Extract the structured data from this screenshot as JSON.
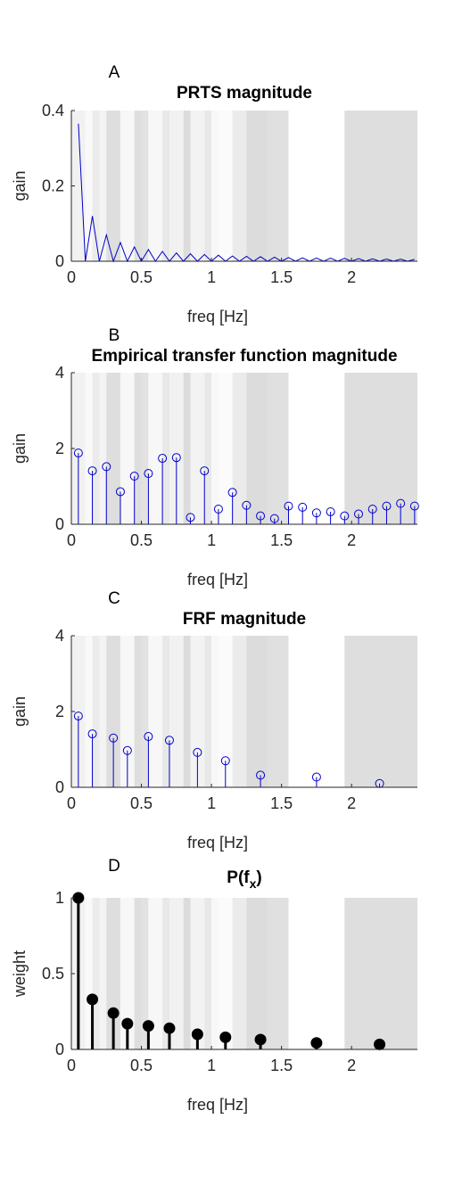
{
  "chart_data": [
    {
      "panel": "A",
      "type": "line",
      "title": "PRTS magnitude",
      "xlabel": "freq [Hz]",
      "ylabel": "gain",
      "xlim": [
        0,
        2.47
      ],
      "ylim": [
        0,
        0.4
      ],
      "xticks": [
        "0",
        "0.5",
        "1",
        "1.5",
        "2"
      ],
      "yticks": [
        "0",
        "0.2",
        "0.4"
      ],
      "series": [
        {
          "color": "#0000cc",
          "x": [
            0.05,
            0.1,
            0.15,
            0.2,
            0.25,
            0.3,
            0.35,
            0.4,
            0.45,
            0.5,
            0.55,
            0.6,
            0.65,
            0.7,
            0.75,
            0.8,
            0.85,
            0.9,
            0.95,
            1.0,
            1.05,
            1.1,
            1.15,
            1.2,
            1.25,
            1.3,
            1.35,
            1.4,
            1.45,
            1.5,
            1.55,
            1.6,
            1.65,
            1.7,
            1.75,
            1.8,
            1.85,
            1.9,
            1.95,
            2.0,
            2.05,
            2.1,
            2.15,
            2.2,
            2.25,
            2.3,
            2.35,
            2.4,
            2.45
          ],
          "y": [
            0.365,
            0.0,
            0.12,
            0.0,
            0.07,
            0.0,
            0.05,
            0.0,
            0.038,
            0.0,
            0.031,
            0.0,
            0.026,
            0.0,
            0.022,
            0.0,
            0.02,
            0.0,
            0.018,
            0.0,
            0.016,
            0.0,
            0.014,
            0.0,
            0.013,
            0.0,
            0.012,
            0.0,
            0.011,
            0.0,
            0.01,
            0.0,
            0.009,
            0.0,
            0.0085,
            0.0,
            0.008,
            0.0,
            0.0075,
            0.0,
            0.007,
            0.0,
            0.0065,
            0.0,
            0.006,
            0.0,
            0.0055,
            0.0,
            0.005
          ]
        }
      ]
    },
    {
      "panel": "B",
      "type": "stem",
      "title": "Empirical transfer function magnitude",
      "xlabel": "freq [Hz]",
      "ylabel": "gain",
      "xlim": [
        0,
        2.47
      ],
      "ylim": [
        0,
        4
      ],
      "xticks": [
        "0",
        "0.5",
        "1",
        "1.5",
        "2"
      ],
      "yticks": [
        "0",
        "2",
        "4"
      ],
      "series": [
        {
          "color": "#0000cc",
          "marker": "open-circle",
          "x": [
            0.05,
            0.15,
            0.25,
            0.35,
            0.45,
            0.55,
            0.65,
            0.75,
            0.85,
            0.95,
            1.05,
            1.15,
            1.25,
            1.35,
            1.45,
            1.55,
            1.65,
            1.75,
            1.85,
            1.95,
            2.05,
            2.15,
            2.25,
            2.35,
            2.45
          ],
          "y": [
            1.88,
            1.41,
            1.52,
            0.86,
            1.27,
            1.34,
            1.74,
            1.76,
            0.18,
            1.41,
            0.4,
            0.84,
            0.5,
            0.22,
            0.15,
            0.48,
            0.45,
            0.3,
            0.33,
            0.22,
            0.27,
            0.4,
            0.48,
            0.55,
            0.48
          ]
        }
      ]
    },
    {
      "panel": "C",
      "type": "stem",
      "title": "FRF magnitude",
      "xlabel": "freq [Hz]",
      "ylabel": "gain",
      "xlim": [
        0,
        2.47
      ],
      "ylim": [
        0,
        4
      ],
      "xticks": [
        "0",
        "0.5",
        "1",
        "1.5",
        "2"
      ],
      "yticks": [
        "0",
        "2",
        "4"
      ],
      "series": [
        {
          "color": "#0000cc",
          "marker": "open-circle",
          "x": [
            0.05,
            0.15,
            0.3,
            0.4,
            0.55,
            0.7,
            0.9,
            1.1,
            1.35,
            1.75,
            2.2
          ],
          "y": [
            1.88,
            1.41,
            1.3,
            0.97,
            1.34,
            1.24,
            0.92,
            0.7,
            0.32,
            0.27,
            0.1
          ]
        }
      ]
    },
    {
      "panel": "D",
      "type": "stem",
      "title": "P(f",
      "title_sub": "x",
      "title_end": ")",
      "xlabel": "freq [Hz]",
      "ylabel": "weight",
      "xlim": [
        0,
        2.47
      ],
      "ylim": [
        0,
        1
      ],
      "xticks": [
        "0",
        "0.5",
        "1",
        "1.5",
        "2"
      ],
      "yticks": [
        "0",
        "0.5",
        "1"
      ],
      "series": [
        {
          "color": "#000000",
          "marker": "filled-circle",
          "x": [
            0.05,
            0.15,
            0.3,
            0.4,
            0.55,
            0.7,
            0.9,
            1.1,
            1.35,
            1.75,
            2.2
          ],
          "y": [
            1.0,
            0.33,
            0.24,
            0.17,
            0.155,
            0.14,
            0.1,
            0.08,
            0.065,
            0.043,
            0.033
          ]
        }
      ]
    }
  ],
  "background_bands": {
    "x": [
      0.0,
      0.1,
      0.15,
      0.2,
      0.25,
      0.35,
      0.45,
      0.5,
      0.55,
      0.65,
      0.7,
      0.8,
      0.85,
      0.95,
      1.0,
      1.05,
      1.15,
      1.25,
      1.4,
      1.55,
      1.95,
      2.47
    ],
    "level": [
      0.35,
      0.15,
      0.5,
      0.3,
      0.8,
      0.2,
      0.8,
      0.7,
      0.2,
      0.55,
      0.35,
      0.85,
      0.3,
      0.55,
      0.2,
      0.1,
      0.5,
      0.85,
      0.75,
      0.0,
      0.8
    ],
    "color_light": "#ffffff",
    "color_dark": "#d6d6d6"
  },
  "colors": {
    "axis": "#262626",
    "axes_bg": "#ffffff"
  }
}
